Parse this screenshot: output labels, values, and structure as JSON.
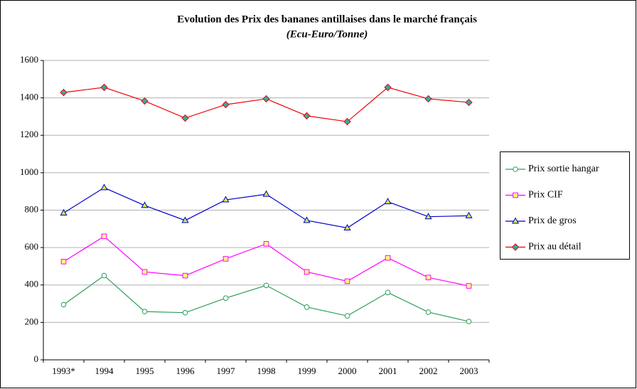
{
  "chart_data": {
    "type": "line",
    "title": "Evolution des Prix des bananes antillaises dans le marché français",
    "subtitle": "(Ecu-Euro/Tonne)",
    "categories": [
      "1993*",
      "1994",
      "1995",
      "1996",
      "1997",
      "1998",
      "1999",
      "2000",
      "2001",
      "2002",
      "2003"
    ],
    "series": [
      {
        "name": "Prix sortie hangar",
        "color": "#2e9e5a",
        "marker": "circle",
        "marker_fill": "#ffffff",
        "values": [
          295,
          450,
          258,
          252,
          330,
          398,
          282,
          235,
          360,
          255,
          205
        ]
      },
      {
        "name": "Prix CIF",
        "color": "#ff00ff",
        "marker": "square",
        "marker_fill": "#ffff80",
        "values": [
          525,
          660,
          470,
          450,
          540,
          620,
          470,
          420,
          545,
          440,
          395
        ]
      },
      {
        "name": "Prix de gros",
        "color": "#0000cc",
        "marker": "triangle",
        "marker_fill": "#ccee44",
        "values": [
          785,
          920,
          825,
          745,
          855,
          885,
          745,
          705,
          845,
          765,
          770
        ]
      },
      {
        "name": "Prix au détail",
        "color": "#ee0000",
        "marker": "diamond",
        "marker_fill": "#33aaaa",
        "values": [
          1429,
          1456,
          1383,
          1292,
          1364,
          1395,
          1304,
          1273,
          1456,
          1395,
          1376
        ]
      }
    ],
    "ylim": [
      0,
      1600
    ],
    "yticks": [
      0,
      200,
      400,
      600,
      800,
      1000,
      1200,
      1400,
      1600
    ],
    "grid": true,
    "legend": "right"
  }
}
